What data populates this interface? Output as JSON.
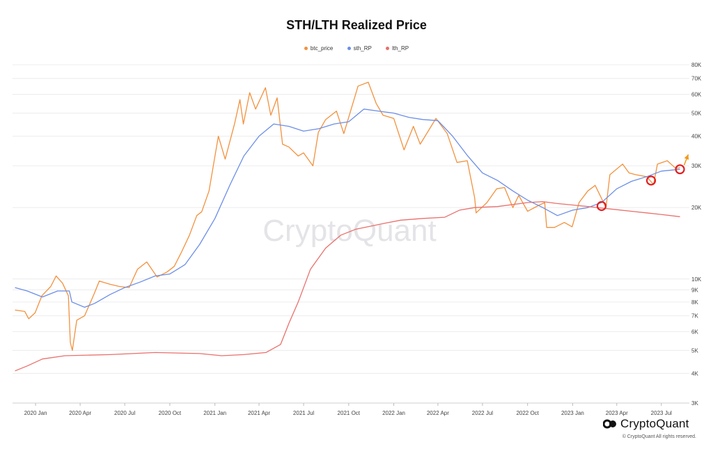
{
  "chart_data": {
    "type": "line",
    "title": "STH/LTH Realized Price",
    "y_scale": "log",
    "ylim": [
      3000,
      85000
    ],
    "y_ticks": [
      3000,
      4000,
      5000,
      6000,
      7000,
      8000,
      9000,
      10000,
      20000,
      30000,
      40000,
      50000,
      60000,
      70000,
      80000
    ],
    "y_tick_labels": [
      "3K",
      "4K",
      "5K",
      "6K",
      "7K",
      "8K",
      "9K",
      "10K",
      "20K",
      "30K",
      "40K",
      "50K",
      "60K",
      "70K",
      "80K"
    ],
    "x_tick_labels": [
      "2020 Jan",
      "2020 Apr",
      "2020 Jul",
      "2020 Oct",
      "2021 Jan",
      "2021 Apr",
      "2021 Jul",
      "2021 Oct",
      "2022 Jan",
      "2022 Apr",
      "2022 Jul",
      "2022 Oct",
      "2023 Jan",
      "2023 Apr",
      "2023 Jul"
    ],
    "x_ticks": [
      "2020-01-01",
      "2020-04-01",
      "2020-07-01",
      "2020-10-01",
      "2021-01-01",
      "2021-04-01",
      "2021-07-01",
      "2021-10-01",
      "2022-01-01",
      "2022-04-01",
      "2022-07-01",
      "2022-10-01",
      "2023-01-01",
      "2023-04-01",
      "2023-07-01"
    ],
    "xlim": [
      "2019-11-15",
      "2023-08-20"
    ],
    "grid": "horizontal",
    "legend_position": "top-center",
    "watermark": "CryptoQuant",
    "series": [
      {
        "name": "btc_price",
        "color": "#f2913d",
        "points": [
          [
            "2019-11-20",
            7400
          ],
          [
            "2019-12-10",
            7300
          ],
          [
            "2019-12-18",
            6800
          ],
          [
            "2019-12-31",
            7200
          ],
          [
            "2020-01-14",
            8500
          ],
          [
            "2020-02-01",
            9300
          ],
          [
            "2020-02-12",
            10300
          ],
          [
            "2020-02-25",
            9600
          ],
          [
            "2020-03-08",
            8500
          ],
          [
            "2020-03-12",
            5400
          ],
          [
            "2020-03-16",
            5000
          ],
          [
            "2020-03-25",
            6700
          ],
          [
            "2020-04-10",
            7000
          ],
          [
            "2020-04-30",
            8700
          ],
          [
            "2020-05-10",
            9800
          ],
          [
            "2020-06-01",
            9500
          ],
          [
            "2020-06-20",
            9300
          ],
          [
            "2020-07-10",
            9200
          ],
          [
            "2020-07-27",
            11000
          ],
          [
            "2020-08-15",
            11800
          ],
          [
            "2020-09-05",
            10200
          ],
          [
            "2020-09-25",
            10700
          ],
          [
            "2020-10-10",
            11300
          ],
          [
            "2020-10-25",
            13000
          ],
          [
            "2020-11-10",
            15300
          ],
          [
            "2020-11-25",
            18500
          ],
          [
            "2020-12-05",
            19200
          ],
          [
            "2020-12-20",
            23500
          ],
          [
            "2021-01-08",
            40000
          ],
          [
            "2021-01-22",
            32000
          ],
          [
            "2021-02-10",
            45000
          ],
          [
            "2021-02-21",
            57000
          ],
          [
            "2021-02-28",
            45000
          ],
          [
            "2021-03-13",
            61000
          ],
          [
            "2021-03-25",
            52000
          ],
          [
            "2021-04-14",
            64000
          ],
          [
            "2021-04-25",
            49000
          ],
          [
            "2021-05-08",
            58000
          ],
          [
            "2021-05-19",
            37000
          ],
          [
            "2021-06-01",
            36000
          ],
          [
            "2021-06-20",
            33000
          ],
          [
            "2021-07-01",
            34000
          ],
          [
            "2021-07-20",
            30000
          ],
          [
            "2021-07-31",
            41500
          ],
          [
            "2021-08-15",
            47000
          ],
          [
            "2021-09-06",
            51000
          ],
          [
            "2021-09-21",
            41000
          ],
          [
            "2021-10-01",
            48000
          ],
          [
            "2021-10-20",
            65000
          ],
          [
            "2021-11-10",
            67500
          ],
          [
            "2021-11-26",
            55000
          ],
          [
            "2021-12-10",
            49000
          ],
          [
            "2022-01-01",
            47500
          ],
          [
            "2022-01-22",
            35000
          ],
          [
            "2022-02-10",
            44000
          ],
          [
            "2022-02-24",
            37000
          ],
          [
            "2022-03-28",
            47500
          ],
          [
            "2022-04-20",
            41000
          ],
          [
            "2022-05-10",
            31000
          ],
          [
            "2022-05-31",
            31500
          ],
          [
            "2022-06-15",
            22000
          ],
          [
            "2022-06-18",
            19000
          ],
          [
            "2022-07-10",
            21000
          ],
          [
            "2022-07-30",
            24000
          ],
          [
            "2022-08-15",
            24300
          ],
          [
            "2022-09-01",
            20000
          ],
          [
            "2022-09-13",
            22500
          ],
          [
            "2022-10-01",
            19300
          ],
          [
            "2022-10-25",
            20500
          ],
          [
            "2022-11-05",
            21000
          ],
          [
            "2022-11-09",
            16500
          ],
          [
            "2022-11-25",
            16500
          ],
          [
            "2022-12-15",
            17300
          ],
          [
            "2022-12-31",
            16600
          ],
          [
            "2023-01-14",
            21000
          ],
          [
            "2023-02-01",
            23500
          ],
          [
            "2023-02-16",
            24800
          ],
          [
            "2023-03-10",
            20000
          ],
          [
            "2023-03-18",
            27500
          ],
          [
            "2023-04-13",
            30500
          ],
          [
            "2023-04-26",
            28000
          ],
          [
            "2023-05-10",
            27500
          ],
          [
            "2023-06-01",
            27000
          ],
          [
            "2023-06-15",
            25000
          ],
          [
            "2023-06-23",
            30500
          ],
          [
            "2023-07-13",
            31500
          ],
          [
            "2023-07-31",
            29200
          ],
          [
            "2023-08-08",
            29500
          ]
        ]
      },
      {
        "name": "sth_RP",
        "color": "#6c8ee8",
        "points": [
          [
            "2019-11-20",
            9200
          ],
          [
            "2019-12-15",
            8900
          ],
          [
            "2020-01-15",
            8400
          ],
          [
            "2020-02-15",
            8900
          ],
          [
            "2020-03-10",
            8900
          ],
          [
            "2020-03-15",
            8000
          ],
          [
            "2020-04-10",
            7600
          ],
          [
            "2020-05-01",
            7900
          ],
          [
            "2020-06-01",
            8600
          ],
          [
            "2020-07-01",
            9200
          ],
          [
            "2020-08-01",
            9700
          ],
          [
            "2020-09-01",
            10300
          ],
          [
            "2020-10-01",
            10500
          ],
          [
            "2020-11-01",
            11500
          ],
          [
            "2020-12-01",
            14000
          ],
          [
            "2021-01-01",
            18000
          ],
          [
            "2021-02-01",
            25000
          ],
          [
            "2021-03-01",
            33000
          ],
          [
            "2021-04-01",
            40000
          ],
          [
            "2021-05-01",
            45000
          ],
          [
            "2021-06-01",
            44000
          ],
          [
            "2021-07-01",
            42000
          ],
          [
            "2021-08-01",
            43000
          ],
          [
            "2021-09-01",
            45000
          ],
          [
            "2021-10-01",
            46000
          ],
          [
            "2021-11-01",
            52000
          ],
          [
            "2021-12-01",
            51000
          ],
          [
            "2022-01-01",
            50000
          ],
          [
            "2022-02-01",
            48000
          ],
          [
            "2022-03-01",
            47000
          ],
          [
            "2022-04-01",
            46500
          ],
          [
            "2022-05-01",
            40000
          ],
          [
            "2022-06-01",
            33000
          ],
          [
            "2022-07-01",
            28000
          ],
          [
            "2022-08-01",
            26000
          ],
          [
            "2022-09-01",
            23500
          ],
          [
            "2022-10-01",
            21500
          ],
          [
            "2022-11-01",
            20000
          ],
          [
            "2022-12-01",
            18500
          ],
          [
            "2023-01-01",
            19500
          ],
          [
            "2023-02-01",
            20000
          ],
          [
            "2023-03-01",
            21000
          ],
          [
            "2023-04-01",
            24000
          ],
          [
            "2023-05-01",
            25800
          ],
          [
            "2023-06-01",
            27000
          ],
          [
            "2023-07-01",
            28500
          ],
          [
            "2023-08-08",
            29000
          ]
        ]
      },
      {
        "name": "lth_RP",
        "color": "#e8706c",
        "points": [
          [
            "2019-11-20",
            4100
          ],
          [
            "2019-12-15",
            4300
          ],
          [
            "2020-01-15",
            4600
          ],
          [
            "2020-03-01",
            4750
          ],
          [
            "2020-06-01",
            4800
          ],
          [
            "2020-09-01",
            4900
          ],
          [
            "2020-12-01",
            4850
          ],
          [
            "2021-01-15",
            4750
          ],
          [
            "2021-03-01",
            4800
          ],
          [
            "2021-04-15",
            4900
          ],
          [
            "2021-05-15",
            5300
          ],
          [
            "2021-06-01",
            6500
          ],
          [
            "2021-06-20",
            8000
          ],
          [
            "2021-07-15",
            11000
          ],
          [
            "2021-08-15",
            13500
          ],
          [
            "2021-09-15",
            15300
          ],
          [
            "2021-10-15",
            16200
          ],
          [
            "2021-11-15",
            16700
          ],
          [
            "2021-12-15",
            17200
          ],
          [
            "2022-01-15",
            17700
          ],
          [
            "2022-03-01",
            18000
          ],
          [
            "2022-04-15",
            18200
          ],
          [
            "2022-05-15",
            19500
          ],
          [
            "2022-06-15",
            20000
          ],
          [
            "2022-08-01",
            20200
          ],
          [
            "2022-10-01",
            21000
          ],
          [
            "2022-11-01",
            21200
          ],
          [
            "2022-12-01",
            20800
          ],
          [
            "2023-01-01",
            20500
          ],
          [
            "2023-02-01",
            20200
          ],
          [
            "2023-03-01",
            19900
          ],
          [
            "2023-04-01",
            19600
          ],
          [
            "2023-05-01",
            19300
          ],
          [
            "2023-06-01",
            19000
          ],
          [
            "2023-07-01",
            18700
          ],
          [
            "2023-08-08",
            18300
          ]
        ]
      }
    ],
    "annotations": [
      {
        "type": "circle",
        "date": "2023-03-01",
        "value": 20300,
        "color": "#e02020"
      },
      {
        "type": "circle",
        "date": "2023-06-10",
        "value": 26000,
        "color": "#e02020"
      },
      {
        "type": "circle",
        "date": "2023-08-08",
        "value": 29000,
        "color": "#e02020"
      },
      {
        "type": "arrow",
        "from_date": "2023-08-08",
        "from_value": 29000,
        "to_date": "2023-08-25",
        "to_value": 33500,
        "color": "#f29a1e"
      }
    ]
  },
  "brand": {
    "name": "CryptoQuant",
    "copyright": "© CryptoQuant All rights reserved."
  }
}
